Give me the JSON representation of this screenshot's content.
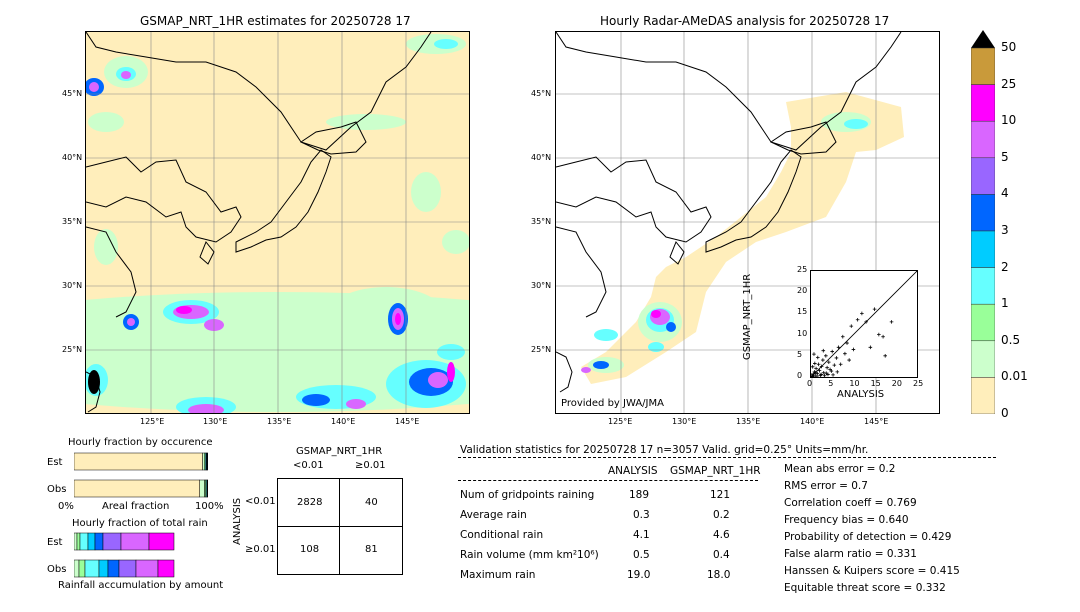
{
  "left_map": {
    "title": "GSMAP_NRT_1HR estimates for 20250728 17",
    "lat_labels": [
      "45°N",
      "40°N",
      "35°N",
      "30°N",
      "25°N"
    ],
    "lon_labels": [
      "125°E",
      "130°E",
      "135°E",
      "140°E",
      "145°E"
    ]
  },
  "right_map": {
    "title": "Hourly Radar-AMeDAS analysis for 20250728 17",
    "lat_labels": [
      "45°N",
      "40°N",
      "35°N",
      "30°N",
      "25°N"
    ],
    "lon_labels": [
      "125°E",
      "130°E",
      "135°E",
      "140°E",
      "145°E"
    ],
    "credit": "Provided by JWA/JMA"
  },
  "scatter": {
    "xlabel": "ANALYSIS",
    "ylabel": "GSMAP_NRT_1HR",
    "ticks": [
      "0",
      "5",
      "10",
      "15",
      "20",
      "25"
    ]
  },
  "colorbar": {
    "labels": [
      "50",
      "25",
      "10",
      "5",
      "4",
      "3",
      "2",
      "1",
      "0.5",
      "0.01",
      "0"
    ],
    "colors": [
      "#c99a3a",
      "#ff00ff",
      "#d966ff",
      "#9966ff",
      "#0066ff",
      "#00ccff",
      "#66ffff",
      "#99ff99",
      "#ccffcc",
      "#ffeebb"
    ]
  },
  "fraction_occurrence": {
    "title": "Hourly fraction by occurence",
    "rows": [
      "Est",
      "Obs"
    ],
    "axis_left": "0%",
    "axis_mid": "Areal fraction",
    "axis_right": "100%"
  },
  "fraction_total": {
    "title": "Hourly fraction of total rain",
    "rows": [
      "Est",
      "Obs"
    ],
    "footer": "Rainfall accumulation by amount"
  },
  "contingency": {
    "title": "GSMAP_NRT_1HR",
    "col_headers": [
      "<0.01",
      "≥0.01"
    ],
    "row_axis": "ANALYSIS",
    "row_headers": [
      "<0.01",
      "≥0.01"
    ],
    "cells": [
      [
        "2828",
        "40"
      ],
      [
        "108",
        "81"
      ]
    ]
  },
  "validation": {
    "header": "Validation statistics for 20250728 17  n=3057 Valid. grid=0.25° Units=mm/hr.",
    "col_analysis": "ANALYSIS",
    "col_gsmap": "GSMAP_NRT_1HR",
    "rows": [
      {
        "label": "Num of gridpoints raining",
        "analysis": "189",
        "gsmap": "121"
      },
      {
        "label": "Average rain",
        "analysis": "0.3",
        "gsmap": "0.2"
      },
      {
        "label": "Conditional rain",
        "analysis": "4.1",
        "gsmap": "4.6"
      },
      {
        "label": "Rain volume (mm km²10⁶)",
        "analysis": "0.5",
        "gsmap": "0.4"
      },
      {
        "label": "Maximum rain",
        "analysis": "19.0",
        "gsmap": "18.0"
      }
    ],
    "scores": [
      "Mean abs error =    0.2",
      "RMS error =    0.7",
      "Correlation coeff =  0.769",
      "Frequency bias =  0.640",
      "Probability of detection =  0.429",
      "False alarm ratio =  0.331",
      "Hanssen & Kuipers score =  0.415",
      "Equitable threat score =  0.332"
    ]
  },
  "chart_data": [
    {
      "type": "scatter",
      "title": "",
      "xlabel": "ANALYSIS",
      "ylabel": "GSMAP_NRT_1HR",
      "xlim": [
        0,
        25
      ],
      "ylim": [
        0,
        25
      ],
      "points": [
        [
          0.2,
          0.5
        ],
        [
          0.5,
          0.3
        ],
        [
          0.8,
          1.2
        ],
        [
          1.0,
          0.2
        ],
        [
          1.2,
          2.0
        ],
        [
          1.5,
          0.8
        ],
        [
          1.8,
          3.0
        ],
        [
          2.0,
          1.5
        ],
        [
          2.2,
          0.4
        ],
        [
          2.5,
          2.5
        ],
        [
          2.8,
          4.0
        ],
        [
          3.0,
          1.0
        ],
        [
          3.2,
          0.3
        ],
        [
          3.5,
          5.0
        ],
        [
          3.8,
          2.2
        ],
        [
          4.0,
          0.6
        ],
        [
          4.2,
          3.5
        ],
        [
          4.5,
          1.8
        ],
        [
          5.0,
          6.0
        ],
        [
          5.2,
          0.5
        ],
        [
          5.5,
          2.8
        ],
        [
          6.0,
          4.5
        ],
        [
          6.2,
          1.2
        ],
        [
          6.5,
          7.0
        ],
        [
          7.0,
          3.0
        ],
        [
          7.5,
          9.5
        ],
        [
          8.0,
          5.5
        ],
        [
          8.5,
          8.0
        ],
        [
          9.0,
          4.0
        ],
        [
          9.5,
          12.0
        ],
        [
          10.0,
          6.5
        ],
        [
          11.0,
          13.5
        ],
        [
          12.0,
          15.0
        ],
        [
          13.0,
          13.0
        ],
        [
          14.0,
          7.0
        ],
        [
          15.0,
          16.0
        ],
        [
          16.0,
          10.0
        ],
        [
          17.0,
          9.5
        ],
        [
          17.5,
          5.0
        ],
        [
          19.0,
          13.0
        ],
        [
          0.3,
          0.1
        ],
        [
          0.6,
          0.7
        ],
        [
          1.1,
          1.0
        ],
        [
          1.4,
          0.2
        ],
        [
          2.4,
          0.6
        ],
        [
          3.6,
          0.9
        ],
        [
          4.8,
          1.4
        ],
        [
          0.9,
          3.2
        ],
        [
          1.6,
          4.6
        ],
        [
          0.4,
          2.4
        ],
        [
          2.9,
          6.2
        ],
        [
          0.7,
          5.4
        ]
      ]
    },
    {
      "type": "bar",
      "title": "Hourly fraction by occurence",
      "categories": [
        "Est",
        "Obs"
      ],
      "xlim": [
        0,
        100
      ],
      "series": [
        {
          "values": [
            96.0,
            93.8
          ]
        },
        {
          "values": [
            1.2,
            3.6
          ]
        },
        {
          "values": [
            0.8,
            0.9
          ]
        },
        {
          "values": [
            0.7,
            0.7
          ]
        },
        {
          "values": [
            0.5,
            0.4
          ]
        },
        {
          "values": [
            0.4,
            0.3
          ]
        },
        {
          "values": [
            0.4,
            0.3
          ]
        }
      ]
    },
    {
      "type": "bar",
      "title": "Hourly fraction of total rain",
      "categories": [
        "Est",
        "Obs"
      ],
      "series": [
        {
          "values": [
            3,
            5
          ]
        },
        {
          "values": [
            3,
            6
          ]
        },
        {
          "values": [
            8,
            14
          ]
        },
        {
          "values": [
            7,
            9
          ]
        },
        {
          "values": [
            8,
            11
          ]
        },
        {
          "values": [
            18,
            17
          ]
        },
        {
          "values": [
            28,
            22
          ]
        },
        {
          "values": [
            25,
            16
          ]
        }
      ]
    }
  ]
}
